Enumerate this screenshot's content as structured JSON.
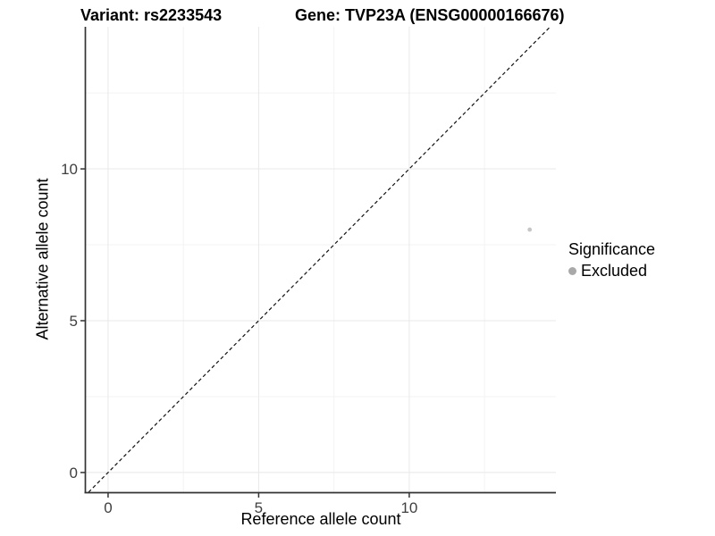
{
  "chart_data": {
    "type": "scatter",
    "title_variant": "Variant: rs2233543",
    "title_gene": "Gene: TVP23A (ENSG00000166676)",
    "xlabel": "Reference allele count",
    "ylabel": "Alternative allele count",
    "x_ticks": [
      0,
      5,
      10
    ],
    "y_ticks": [
      0,
      5,
      10
    ],
    "x_minor_ticks": [
      2.5,
      7.5,
      12.5
    ],
    "y_minor_ticks": [
      2.5,
      7.5,
      12.5
    ],
    "xlim": [
      -0.74,
      14.87
    ],
    "ylim": [
      -0.65,
      14.68
    ],
    "grid": true,
    "identity_line": {
      "slope": 1,
      "intercept": 0,
      "style": "dashed",
      "color": "#111111"
    },
    "points": [
      {
        "x": 14,
        "y": 8,
        "series": "Excluded",
        "color": "#c6c6c6",
        "radius": 2.4
      }
    ],
    "legend": {
      "title": "Significance",
      "position": "right",
      "items": [
        {
          "label": "Excluded",
          "color": "#a9a9a9"
        }
      ]
    },
    "colors": {
      "grid_major": "#e8e8e8",
      "grid_minor": "#f3f3f3",
      "axis": "#333333",
      "tick_label": "#404040"
    }
  }
}
